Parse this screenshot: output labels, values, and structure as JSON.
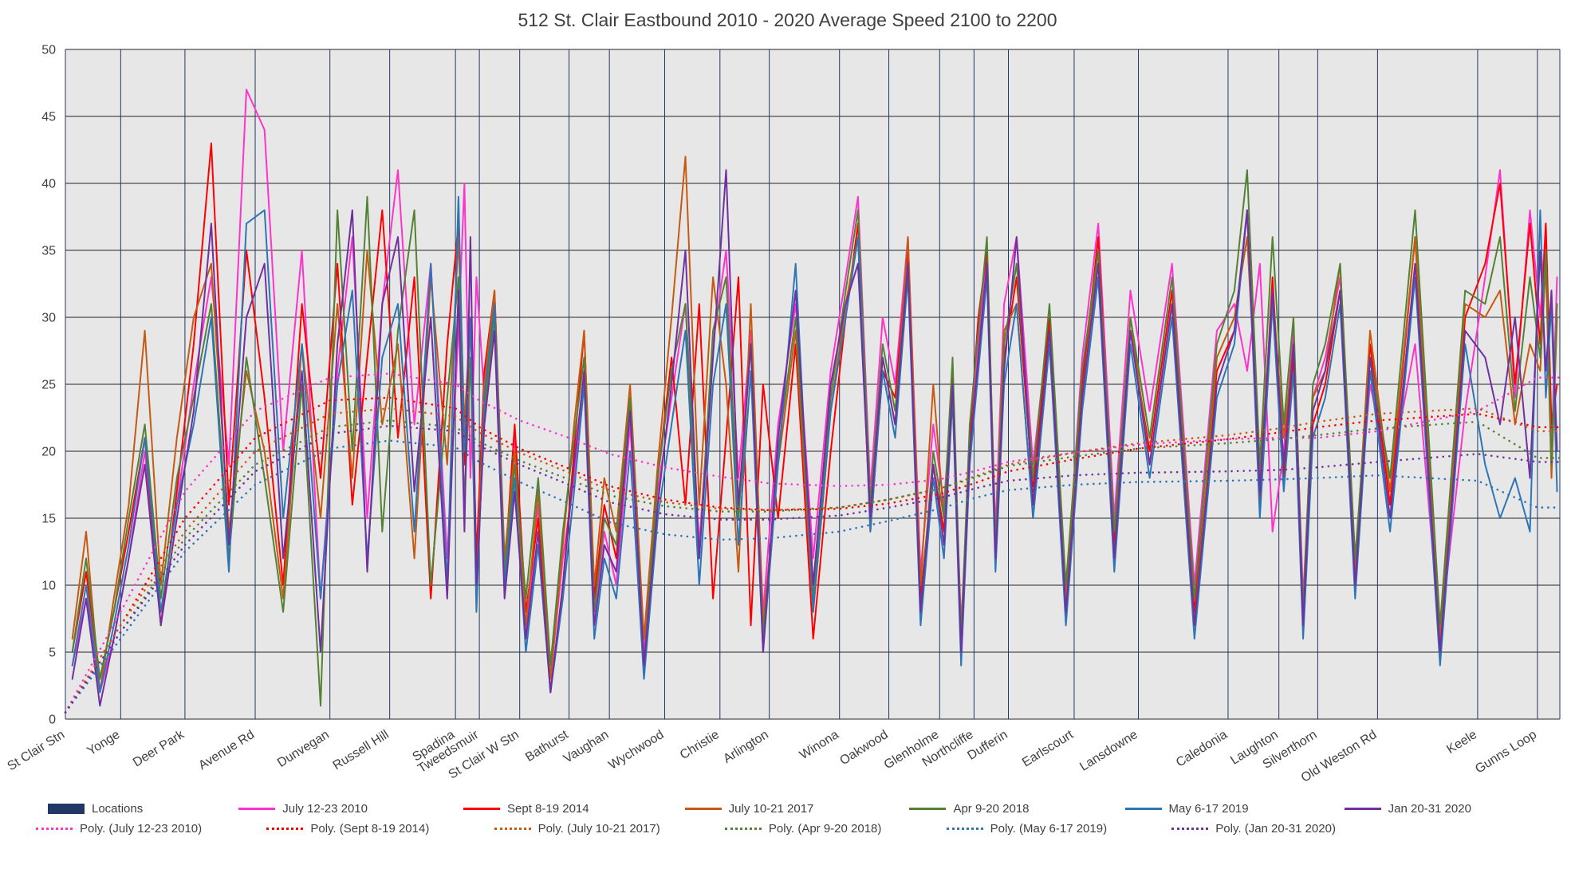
{
  "chart_data": {
    "type": "line",
    "title": "512 St. Clair Eastbound 2010 - 2020 Average Speed 2100 to 2200",
    "xlabel": "",
    "ylabel": "",
    "ylim": [
      0,
      50
    ],
    "ytick_step": 5,
    "yticks": [
      0,
      5,
      10,
      15,
      20,
      25,
      30,
      35,
      40,
      45,
      50
    ],
    "grid": true,
    "legend_position": "bottom",
    "plot_bg": "#E8E7E7",
    "grid_color_h": "#262626",
    "grid_color_v": "#1F3864",
    "axis_text_color": "#404040",
    "title_color": "#3F3F3F",
    "categories": [
      "St Clair Stn",
      "Yonge",
      "Deer Park",
      "Avenue Rd",
      "Dunvegan",
      "Russell Hill",
      "Spadina",
      "Tweedsmuir",
      "St Clair W Stn",
      "Bathurst",
      "Vaughan",
      "Wychwood",
      "Christie",
      "Arlington",
      "Winona",
      "Oakwood",
      "Glenholme",
      "Northcliffe",
      "Dufferin",
      "Earlscourt",
      "Lansdowne",
      "Caledonia",
      "Laughton",
      "Silverthorn",
      "Old Weston Rd",
      "Keele",
      "Gunns Loop"
    ],
    "category_positions": [
      0,
      0.037,
      0.08,
      0.127,
      0.177,
      0.217,
      0.261,
      0.277,
      0.304,
      0.337,
      0.364,
      0.401,
      0.438,
      0.471,
      0.518,
      0.551,
      0.585,
      0.608,
      0.631,
      0.675,
      0.718,
      0.778,
      0.812,
      0.838,
      0.878,
      0.945,
      0.985
    ],
    "points_per_segment": 4,
    "locations_series": {
      "name": "Locations",
      "color": "#203864"
    },
    "series": [
      {
        "name": "July 12-23 2010",
        "color": "#FF33CC",
        "values": [
          4,
          9,
          2,
          6,
          12,
          20,
          8,
          16,
          25,
          33,
          19,
          47,
          44,
          20,
          35,
          9,
          26,
          36,
          15,
          31,
          41,
          22,
          34,
          12,
          29,
          40,
          18,
          33,
          24,
          31,
          10,
          21,
          6,
          16,
          3,
          12,
          18,
          26,
          8,
          14,
          10,
          22,
          5,
          17,
          24,
          31,
          13,
          28,
          35,
          18,
          29,
          8,
          22,
          31,
          12,
          26,
          33,
          39,
          17,
          30,
          25,
          36,
          11,
          22,
          16,
          25,
          7,
          20,
          28,
          35,
          14,
          31,
          36,
          19,
          30,
          9,
          27,
          37,
          15,
          32,
          23,
          34,
          10,
          29,
          31,
          26,
          34,
          14,
          20,
          29,
          9,
          24,
          27,
          33,
          12,
          25,
          18,
          28,
          6,
          23,
          33,
          41,
          24,
          38,
          30,
          37,
          20,
          33
        ]
      },
      {
        "name": "Sept 8-19 2014",
        "color": "#FF0000",
        "values": [
          5,
          11,
          3,
          8,
          14,
          21,
          7,
          17,
          28,
          43,
          16,
          35,
          24,
          10,
          31,
          18,
          34,
          16,
          27,
          38,
          21,
          33,
          9,
          28,
          37,
          19,
          30,
          12,
          26,
          32,
          11,
          22,
          8,
          15,
          2,
          10,
          20,
          29,
          9,
          16,
          12,
          24,
          4,
          18,
          27,
          16,
          31,
          9,
          21,
          33,
          7,
          25,
          15,
          28,
          6,
          20,
          30,
          37,
          14,
          26,
          24,
          35,
          9,
          19,
          14,
          26,
          5,
          21,
          30,
          35,
          12,
          27,
          33,
          17,
          30,
          8,
          25,
          36,
          13,
          29,
          20,
          32,
          8,
          26,
          29,
          38,
          16,
          33,
          18,
          27,
          7,
          22,
          25,
          32,
          10,
          28,
          16,
          36,
          5,
          30,
          34,
          40,
          25,
          37,
          28,
          37,
          22,
          25
        ]
      },
      {
        "name": "July 10-21 2017",
        "color": "#C55A11",
        "values": [
          6,
          14,
          2,
          9,
          16,
          29,
          10,
          21,
          30,
          34,
          14,
          26,
          20,
          9,
          28,
          15,
          31,
          18,
          35,
          22,
          28,
          12,
          33,
          19,
          36,
          22,
          30,
          10,
          25,
          32,
          12,
          20,
          7,
          17,
          3,
          13,
          22,
          29,
          10,
          18,
          14,
          25,
          6,
          19,
          30,
          42,
          16,
          33,
          25,
          11,
          31,
          7,
          19,
          29,
          8,
          23,
          31,
          36,
          15,
          27,
          22,
          36,
          10,
          25,
          15,
          24,
          6,
          19,
          27,
          34,
          13,
          29,
          31,
          15,
          28,
          9,
          24,
          35,
          12,
          30,
          19,
          31,
          7,
          27,
          30,
          36,
          18,
          32,
          21,
          28,
          8,
          24,
          26,
          34,
          11,
          29,
          17,
          36,
          6,
          31,
          30,
          32,
          22,
          28,
          26,
          34,
          18,
          30
        ]
      },
      {
        "name": "Apr 9-20 2018",
        "color": "#548235",
        "values": [
          5,
          12,
          3,
          8,
          15,
          22,
          9,
          18,
          24,
          31,
          12,
          27,
          18,
          8,
          25,
          1,
          38,
          20,
          39,
          14,
          29,
          38,
          10,
          24,
          33,
          16,
          27,
          9,
          23,
          30,
          11,
          19,
          9,
          18,
          4,
          14,
          21,
          27,
          8,
          15,
          13,
          24,
          4,
          18,
          26,
          31,
          12,
          29,
          33,
          15,
          28,
          6,
          20,
          30,
          9,
          24,
          32,
          38,
          16,
          28,
          23,
          34,
          8,
          20,
          15,
          27,
          6,
          22,
          29,
          36,
          13,
          28,
          34,
          18,
          31,
          10,
          26,
          35,
          14,
          30,
          21,
          33,
          9,
          28,
          32,
          41,
          19,
          36,
          22,
          30,
          8,
          25,
          28,
          34,
          12,
          27,
          18,
          38,
          7,
          32,
          31,
          36,
          23,
          33,
          27,
          35,
          19,
          31
        ]
      },
      {
        "name": "May 6-17 2019",
        "color": "#2E75B6",
        "values": [
          4,
          10,
          2,
          7,
          13,
          21,
          8,
          16,
          22,
          30,
          11,
          37,
          38,
          15,
          28,
          9,
          25,
          32,
          12,
          27,
          31,
          14,
          34,
          10,
          39,
          20,
          30,
          8,
          24,
          31,
          10,
          18,
          5,
          13,
          2,
          9,
          17,
          25,
          6,
          12,
          9,
          20,
          3,
          15,
          22,
          29,
          10,
          25,
          31,
          13,
          26,
          5,
          19,
          34,
          8,
          23,
          30,
          36,
          14,
          26,
          21,
          33,
          7,
          18,
          12,
          24,
          4,
          19,
          26,
          33,
          11,
          25,
          31,
          15,
          28,
          7,
          23,
          33,
          11,
          28,
          18,
          30,
          6,
          24,
          28,
          38,
          15,
          31,
          17,
          26,
          6,
          21,
          24,
          31,
          9,
          26,
          14,
          33,
          4,
          28,
          19,
          15,
          18,
          14,
          38,
          24,
          31,
          17
        ]
      },
      {
        "name": "Jan 20-31 2020",
        "color": "#7030A0",
        "values": [
          3,
          9,
          1,
          6,
          12,
          19,
          7,
          15,
          23,
          37,
          13,
          30,
          34,
          12,
          26,
          5,
          28,
          38,
          11,
          31,
          36,
          17,
          30,
          9,
          32,
          14,
          36,
          10,
          22,
          29,
          9,
          17,
          6,
          14,
          2,
          10,
          19,
          26,
          7,
          13,
          11,
          23,
          4,
          16,
          25,
          35,
          12,
          27,
          41,
          16,
          28,
          5,
          21,
          32,
          10,
          25,
          31,
          34,
          15,
          27,
          22,
          34,
          8,
          19,
          13,
          25,
          5,
          20,
          27,
          34,
          12,
          26,
          36,
          16,
          29,
          8,
          24,
          34,
          12,
          29,
          19,
          31,
          7,
          25,
          29,
          38,
          17,
          32,
          19,
          28,
          7,
          23,
          26,
          32,
          10,
          27,
          15,
          34,
          5,
          29,
          27,
          22,
          30,
          18,
          35,
          26,
          32,
          20
        ]
      }
    ],
    "trendlines": [
      {
        "name": "Poly. (July 12-23 2010)",
        "color": "#FF33CC",
        "values": [
          0.5,
          8,
          17,
          23,
          25.5,
          25.8,
          25,
          23.8,
          22.3,
          21,
          19.8,
          18.8,
          18.1,
          17.6,
          17.4,
          17.5,
          17.9,
          18.5,
          19.2,
          19.9,
          20.5,
          20.9,
          21,
          21,
          21.5,
          23,
          25.5
        ]
      },
      {
        "name": "Poly. (Sept 8-19 2014)",
        "color": "#FF0000",
        "values": [
          0.5,
          7,
          15,
          21,
          23.8,
          24,
          23.2,
          21.8,
          20.2,
          18.7,
          17.4,
          16.4,
          15.8,
          15.6,
          15.7,
          16.1,
          16.8,
          17.6,
          18.5,
          19.4,
          20.2,
          20.9,
          21.4,
          21.8,
          22.3,
          22.8,
          21.8
        ]
      },
      {
        "name": "Poly. (July 10-21 2017)",
        "color": "#C55A11",
        "values": [
          0.5,
          7,
          14,
          20,
          22.8,
          23.2,
          22.6,
          21.4,
          19.9,
          18.4,
          17.1,
          16.2,
          15.7,
          15.6,
          15.8,
          16.4,
          17.2,
          18.1,
          19,
          19.9,
          20.6,
          21.2,
          21.7,
          22.2,
          22.8,
          23.2,
          21.5
        ]
      },
      {
        "name": "Poly. (Apr 9-20 2018)",
        "color": "#548235",
        "values": [
          0.5,
          6.5,
          13.5,
          19,
          21.8,
          22.3,
          21.8,
          20.7,
          19.3,
          17.9,
          16.7,
          15.9,
          15.5,
          15.5,
          15.8,
          16.4,
          17.2,
          18,
          18.9,
          19.6,
          20.2,
          20.6,
          20.9,
          21.2,
          21.7,
          22.2,
          19.5
        ]
      },
      {
        "name": "Poly. (May 6-17 2019)",
        "color": "#2E75B6",
        "values": [
          0.5,
          6,
          12.5,
          17.5,
          20.2,
          20.8,
          20.3,
          19.2,
          17.7,
          16.1,
          14.7,
          13.8,
          13.4,
          13.5,
          14,
          14.8,
          15.7,
          16.5,
          17.1,
          17.5,
          17.7,
          17.8,
          17.9,
          18,
          18.2,
          17.8,
          15.8
        ]
      },
      {
        "name": "Poly. (Jan 20-31 2020)",
        "color": "#7030A0",
        "values": [
          0.5,
          6.5,
          13,
          18.5,
          21.3,
          21.9,
          21.5,
          20.4,
          19,
          17.5,
          16.2,
          15.3,
          14.9,
          14.9,
          15.2,
          15.8,
          16.5,
          17.2,
          17.8,
          18.2,
          18.4,
          18.5,
          18.6,
          18.8,
          19.2,
          19.8,
          19.2
        ]
      }
    ],
    "legend": {
      "row1": [
        {
          "label": "Locations",
          "swatch": "box",
          "color": "#203864"
        },
        {
          "label": "July 12-23 2010",
          "swatch": "line",
          "color": "#FF33CC"
        },
        {
          "label": "Sept 8-19 2014",
          "swatch": "line",
          "color": "#FF0000"
        },
        {
          "label": "July 10-21 2017",
          "swatch": "line",
          "color": "#C55A11"
        },
        {
          "label": "Apr 9-20 2018",
          "swatch": "line",
          "color": "#548235"
        },
        {
          "label": "May 6-17 2019",
          "swatch": "line",
          "color": "#2E75B6"
        },
        {
          "label": "Jan 20-31 2020",
          "swatch": "line",
          "color": "#7030A0"
        }
      ],
      "row2": [
        {
          "label": "Poly. (July 12-23 2010)",
          "swatch": "dots",
          "color": "#FF33CC"
        },
        {
          "label": "Poly. (Sept 8-19 2014)",
          "swatch": "dots",
          "color": "#FF0000"
        },
        {
          "label": "Poly. (July 10-21 2017)",
          "swatch": "dots",
          "color": "#C55A11"
        },
        {
          "label": "Poly. (Apr 9-20 2018)",
          "swatch": "dots",
          "color": "#548235"
        },
        {
          "label": "Poly. (May 6-17 2019)",
          "swatch": "dots",
          "color": "#2E75B6"
        },
        {
          "label": "Poly. (Jan 20-31 2020)",
          "swatch": "dots",
          "color": "#7030A0"
        }
      ]
    }
  }
}
